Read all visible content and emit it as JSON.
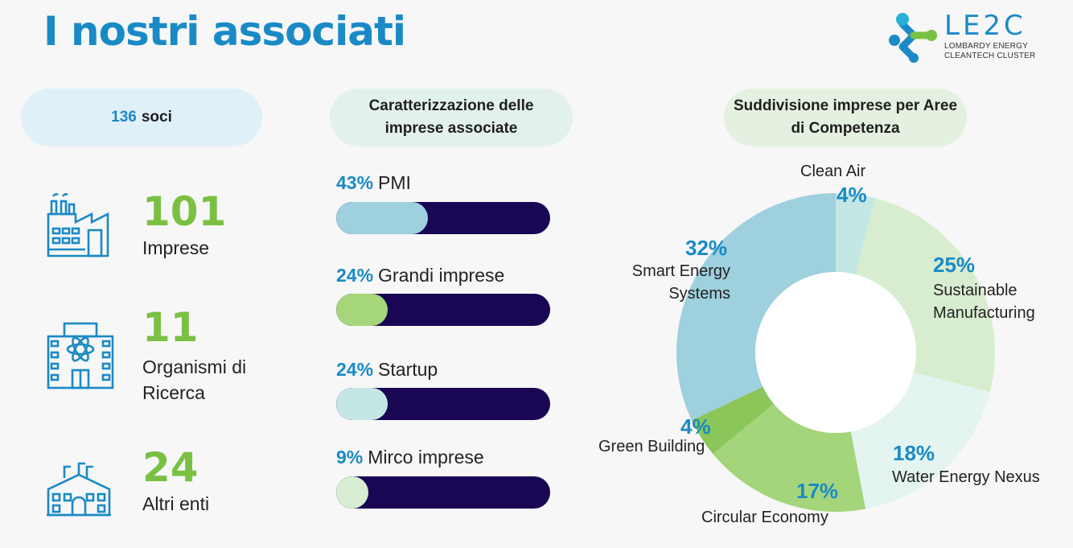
{
  "header": {
    "title": "I nostri associati"
  },
  "logo": {
    "main": "LE2C",
    "line1": "LOMBARDY ENERGY",
    "line2": "CLEANTECH CLUSTER"
  },
  "pills": {
    "soci_num": "136",
    "soci_label": "soci",
    "caratterizzazione": "Caratterizzazione delle imprese associate",
    "suddivisione": "Suddivisione imprese per Aree di Competenza"
  },
  "stats": [
    {
      "value": "101",
      "label": "Imprese",
      "icon": "factory-icon"
    },
    {
      "value": "11",
      "label": "Organismi di Ricerca",
      "icon": "research-building-icon"
    },
    {
      "value": "24",
      "label": "Altri enti",
      "icon": "institution-icon"
    }
  ],
  "colors": {
    "accent": "#1a8ac6",
    "green": "#7ac143",
    "track": "#190754"
  },
  "chart_data": [
    {
      "type": "bar",
      "title": "Caratterizzazione delle imprese associate",
      "categories": [
        "PMI",
        "Grandi imprese",
        "Startup",
        "Mirco imprese"
      ],
      "values": [
        43,
        24,
        24,
        9
      ],
      "labels": [
        "43%",
        "24%",
        "24%",
        "9%"
      ],
      "colors": [
        "#9ed0de",
        "#a6d67a",
        "#c4e7e5",
        "#d8edd2"
      ],
      "ylim": [
        0,
        100
      ]
    },
    {
      "type": "pie",
      "title": "Suddivisione imprese per Aree di Competenza",
      "categories": [
        "Clean Air",
        "Sustainable Manufacturing",
        "Water Energy Nexus",
        "Circular Economy",
        "Green Building",
        "Smart Energy Systems"
      ],
      "values": [
        4,
        25,
        18,
        17,
        4,
        32
      ],
      "labels": [
        "4%",
        "25%",
        "18%",
        "17%",
        "4%",
        "32%"
      ],
      "colors": [
        "#c4e7e5",
        "#d8edd0",
        "#e3f4f1",
        "#a4d57a",
        "#8bc65a",
        "#9ed0de"
      ]
    }
  ]
}
